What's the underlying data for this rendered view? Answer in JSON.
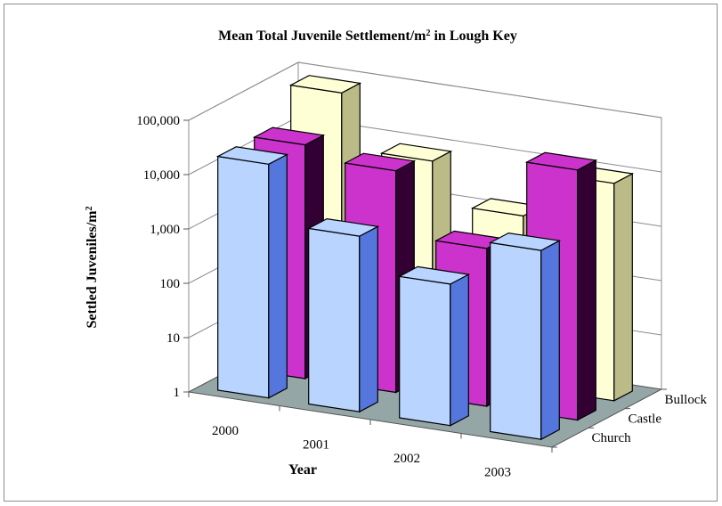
{
  "chart_data": {
    "type": "bar",
    "subtype": "3d-clustered-column",
    "title": "Mean Total Juvenile Settlement/m",
    "title_superscript": "2",
    "title_suffix": " in Lough Key",
    "ylabel": "Settled Juveniles/m",
    "ylabel_superscript": "2",
    "xlabel": "Year",
    "yscale": "log",
    "ylim": [
      1,
      100000
    ],
    "ytick_labels": [
      "1",
      "10",
      "100",
      "1,000",
      "10,000",
      "100,000"
    ],
    "categories": [
      "2000",
      "2001",
      "2002",
      "2003"
    ],
    "depth_labels": [
      "Church",
      "Castle",
      "Bullock"
    ],
    "grid": true,
    "series": [
      {
        "name": "Church",
        "values": [
          20000,
          1700,
          400,
          3000
        ],
        "color": "#b9d4ff",
        "side_color": "#5577dd"
      },
      {
        "name": "Castle",
        "values": [
          20000,
          12000,
          800,
          40000
        ],
        "color": "#cc33cc",
        "side_color": "#330033"
      },
      {
        "name": "Bullock",
        "values": [
          80000,
          8000,
          1400,
          10000
        ],
        "color": "#ffffd6",
        "side_color": "#bbbb88"
      }
    ],
    "floor_color": "#94a6a6"
  }
}
